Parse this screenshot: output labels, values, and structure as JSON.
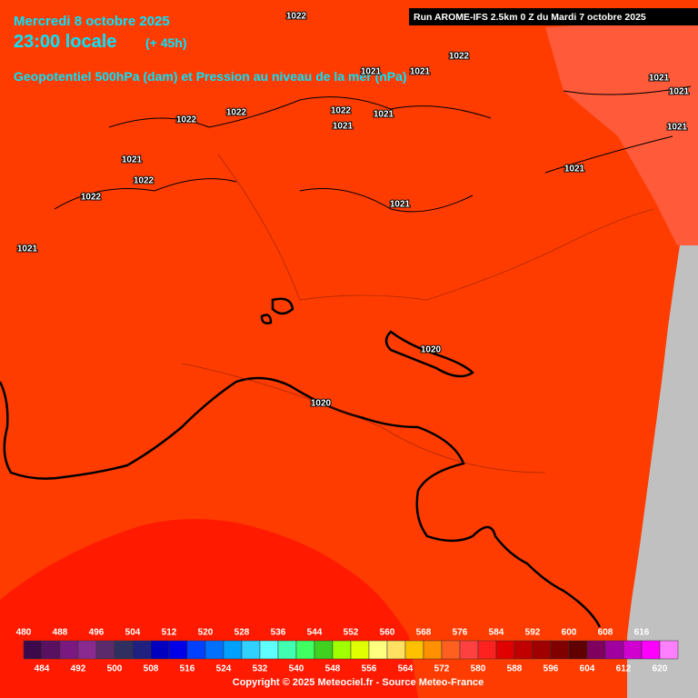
{
  "header": {
    "date": "Mercredi 8 octobre 2025",
    "time": "23:00 locale",
    "lead": "(+ 45h)",
    "field": "Geopotentiel 500hPa (dam) et Pression au niveau de la mer (hPa)",
    "run": "Run AROME-IFS 2.5km 0 Z du Mardi 7 octobre 2025"
  },
  "isobar_labels": [
    "1022",
    "1022",
    "1021",
    "1021",
    "1021",
    "1021",
    "1022",
    "1022",
    "1022",
    "1021",
    "1021",
    "1021",
    "1021",
    "1022",
    "1021",
    "1022",
    "1021",
    "1021",
    "1020",
    "1020"
  ],
  "legend": {
    "top_labels": [
      "480",
      "488",
      "496",
      "504",
      "512",
      "520",
      "528",
      "536",
      "544",
      "552",
      "560",
      "568",
      "576",
      "584",
      "592",
      "600",
      "608",
      "616"
    ],
    "bottom_labels": [
      "484",
      "492",
      "500",
      "508",
      "516",
      "524",
      "532",
      "540",
      "548",
      "556",
      "564",
      "572",
      "580",
      "588",
      "596",
      "604",
      "612",
      "620"
    ],
    "colors": [
      "#3c0a4a",
      "#5a1060",
      "#7a1a80",
      "#8a2a90",
      "#5a2a6a",
      "#303060",
      "#202080",
      "#0000c0",
      "#0000e8",
      "#0040ff",
      "#0070ff",
      "#00a0ff",
      "#30d0ff",
      "#60ffff",
      "#40ffb0",
      "#40ff60",
      "#40d020",
      "#a0ff00",
      "#e0ff00",
      "#ffff80",
      "#ffe060",
      "#ffc000",
      "#ff9000",
      "#ff6020",
      "#ff4040",
      "#ff2020",
      "#e00000",
      "#c00000",
      "#a00000",
      "#800000",
      "#600000",
      "#800060",
      "#a000a0",
      "#d000d0",
      "#ff00ff",
      "#ff80ff"
    ]
  },
  "footer": {
    "copyright": "Copyright © 2025 Meteociel.fr - Source Meteo-France"
  }
}
